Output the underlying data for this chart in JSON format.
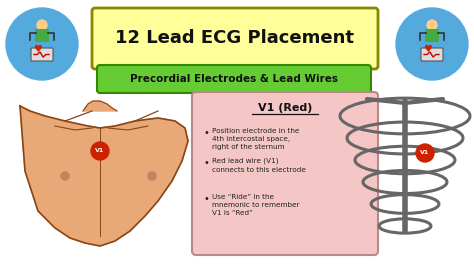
{
  "title": "12 Lead ECG Placement",
  "subtitle": "Precordial Electrodes & Lead Wires",
  "title_bg": "#FFFF99",
  "subtitle_bg": "#66CC33",
  "background_color": "#FFFFFF",
  "info_box_bg": "#F5C6C6",
  "info_box_title": "V1 (Red)",
  "info_box_bullets": [
    "Position electrode in the\n4th intercostal space,\nright of the sternum",
    "Red lead wire (V1)\nconnects to this electrode",
    "Use “Ride” in the\nmnemonic to remember\nV1 is “Red”"
  ],
  "body_fill": "#E8A878",
  "body_outline": "#8B4513",
  "rib_color": "#666666",
  "electrode_color": "#CC2200",
  "electrode_label": "V1",
  "icon_circle_color": "#55AADD",
  "figure_color": "#44AA44",
  "heart_color": "#CC2200"
}
